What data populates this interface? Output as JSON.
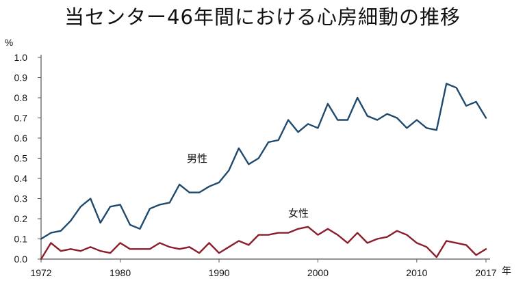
{
  "chart_data": {
    "type": "line",
    "title": "当センター46年間における心房細動の推移",
    "ylabel": "%",
    "xlabel": "年",
    "ylim": [
      0,
      1.0
    ],
    "xlim": [
      1972,
      2017
    ],
    "grid": false,
    "legend": "inline labels",
    "y_ticks": [
      "0.0",
      "0.1",
      "0.2",
      "0.3",
      "0.4",
      "0.5",
      "0.6",
      "0.7",
      "0.8",
      "0.9",
      "1.0"
    ],
    "x_ticks": [
      1972,
      1980,
      1990,
      2000,
      2010,
      2017
    ],
    "x": [
      1972,
      1973,
      1974,
      1975,
      1976,
      1977,
      1978,
      1979,
      1980,
      1981,
      1982,
      1983,
      1984,
      1985,
      1986,
      1987,
      1988,
      1989,
      1990,
      1991,
      1992,
      1993,
      1994,
      1995,
      1996,
      1997,
      1998,
      1999,
      2000,
      2001,
      2002,
      2003,
      2004,
      2005,
      2006,
      2007,
      2008,
      2009,
      2010,
      2011,
      2012,
      2013,
      2014,
      2015,
      2016,
      2017
    ],
    "series": [
      {
        "name": "男性",
        "color": "#1f4a6e",
        "values": [
          0.1,
          0.13,
          0.14,
          0.19,
          0.26,
          0.3,
          0.18,
          0.26,
          0.27,
          0.17,
          0.15,
          0.25,
          0.27,
          0.28,
          0.37,
          0.33,
          0.33,
          0.36,
          0.38,
          0.44,
          0.55,
          0.47,
          0.5,
          0.58,
          0.59,
          0.69,
          0.63,
          0.67,
          0.65,
          0.77,
          0.69,
          0.69,
          0.8,
          0.71,
          0.69,
          0.72,
          0.7,
          0.65,
          0.69,
          0.65,
          0.64,
          0.87,
          0.85,
          0.76,
          0.78,
          0.7
        ]
      },
      {
        "name": "女性",
        "color": "#8b1e2c",
        "values": [
          0.0,
          0.08,
          0.04,
          0.05,
          0.04,
          0.06,
          0.04,
          0.03,
          0.08,
          0.05,
          0.05,
          0.05,
          0.08,
          0.06,
          0.05,
          0.06,
          0.03,
          0.08,
          0.03,
          0.06,
          0.09,
          0.07,
          0.12,
          0.12,
          0.13,
          0.13,
          0.15,
          0.16,
          0.12,
          0.15,
          0.12,
          0.08,
          0.13,
          0.08,
          0.1,
          0.11,
          0.14,
          0.12,
          0.08,
          0.06,
          0.01,
          0.09,
          0.08,
          0.07,
          0.02,
          0.05
        ]
      }
    ]
  }
}
